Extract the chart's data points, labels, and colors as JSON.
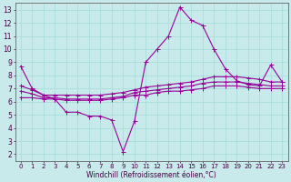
{
  "title": "",
  "xlabel": "Windchill (Refroidissement éolien,°C)",
  "ylabel": "",
  "bg_color": "#c8eaea",
  "line_color": "#990099",
  "grid_color": "#aadddd",
  "xlim": [
    -0.5,
    23.5
  ],
  "ylim": [
    1.5,
    13.5
  ],
  "yticks": [
    2,
    3,
    4,
    5,
    6,
    7,
    8,
    9,
    10,
    11,
    12,
    13
  ],
  "xticks": [
    0,
    1,
    2,
    3,
    4,
    5,
    6,
    7,
    8,
    9,
    10,
    11,
    12,
    13,
    14,
    15,
    16,
    17,
    18,
    19,
    20,
    21,
    22,
    23
  ],
  "line1_x": [
    0,
    1,
    2,
    3,
    4,
    5,
    6,
    7,
    8,
    9,
    10,
    11,
    12,
    13,
    14,
    15,
    16,
    17,
    18,
    19,
    20,
    21,
    22,
    23
  ],
  "line1_y": [
    8.7,
    7.0,
    6.5,
    6.2,
    5.2,
    5.2,
    4.9,
    4.9,
    4.6,
    2.2,
    4.5,
    9.0,
    10.0,
    11.0,
    13.2,
    12.2,
    11.8,
    10.0,
    8.5,
    7.6,
    7.3,
    7.2,
    8.8,
    7.5
  ],
  "line2_x": [
    0,
    1,
    2,
    3,
    4,
    5,
    6,
    7,
    8,
    9,
    10,
    11,
    12,
    13,
    14,
    15,
    16,
    17,
    18,
    19,
    20,
    21,
    22,
    23
  ],
  "line2_y": [
    7.2,
    6.9,
    6.5,
    6.5,
    6.5,
    6.5,
    6.5,
    6.5,
    6.6,
    6.7,
    6.9,
    7.1,
    7.2,
    7.3,
    7.4,
    7.5,
    7.7,
    7.9,
    7.9,
    7.9,
    7.8,
    7.7,
    7.5,
    7.5
  ],
  "line3_x": [
    0,
    1,
    2,
    3,
    4,
    5,
    6,
    7,
    8,
    9,
    10,
    11,
    12,
    13,
    14,
    15,
    16,
    17,
    18,
    19,
    20,
    21,
    22,
    23
  ],
  "line3_y": [
    6.8,
    6.6,
    6.3,
    6.3,
    6.2,
    6.2,
    6.2,
    6.2,
    6.3,
    6.4,
    6.7,
    6.8,
    6.9,
    7.0,
    7.1,
    7.2,
    7.4,
    7.5,
    7.5,
    7.5,
    7.4,
    7.3,
    7.2,
    7.2
  ],
  "line4_x": [
    0,
    1,
    2,
    3,
    4,
    5,
    6,
    7,
    8,
    9,
    10,
    11,
    12,
    13,
    14,
    15,
    16,
    17,
    18,
    19,
    20,
    21,
    22,
    23
  ],
  "line4_y": [
    6.3,
    6.3,
    6.2,
    6.2,
    6.1,
    6.1,
    6.1,
    6.1,
    6.2,
    6.3,
    6.5,
    6.5,
    6.7,
    6.8,
    6.8,
    6.9,
    7.0,
    7.2,
    7.2,
    7.2,
    7.1,
    7.0,
    7.0,
    7.0
  ]
}
